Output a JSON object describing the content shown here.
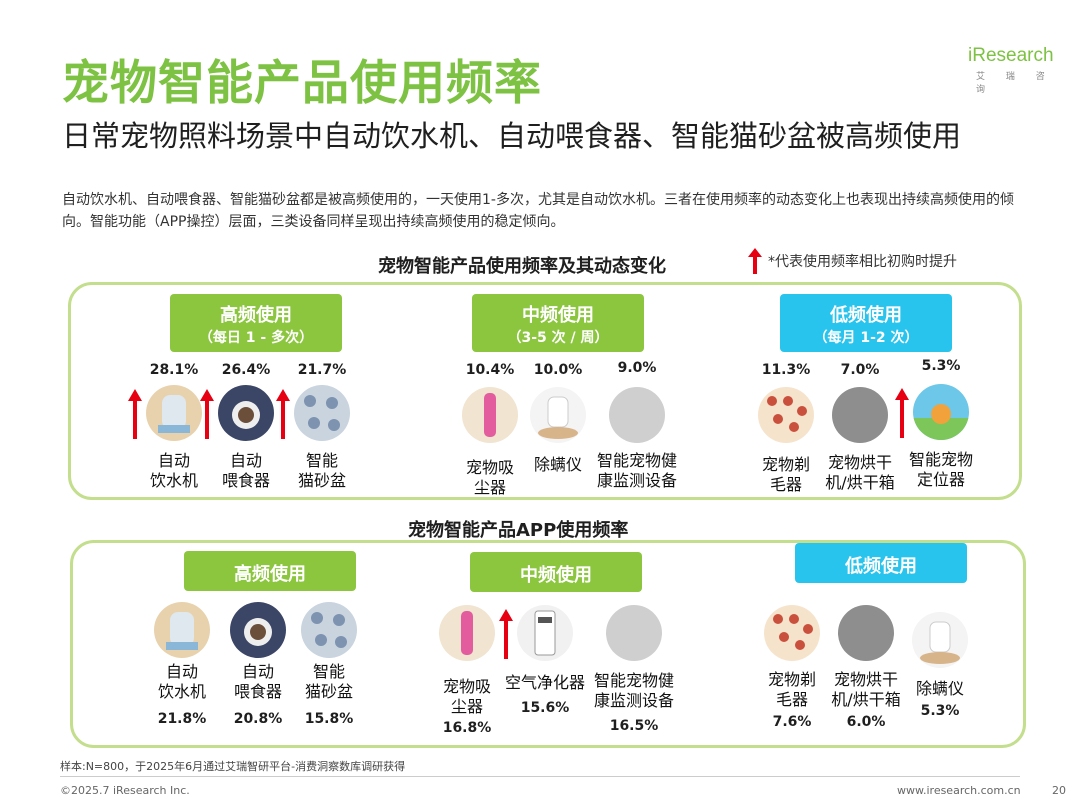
{
  "header": {
    "title": "宠物智能产品使用频率",
    "subtitle": "日常宠物照料场景中自动饮水机、自动喂食器、智能猫砂盆被高频使用",
    "logo_text": "iResearch",
    "logo_sub": "艾 瑞 咨 询"
  },
  "intro": "自动饮水机、自动喂食器、智能猫砂盆都是被高频使用的，一天使用1-多次，尤其是自动饮水机。三者在使用频率的动态变化上也表现出持续高频使用的倾向。智能功能（APP操控）层面，三类设备同样呈现出持续高频使用的稳定倾向。",
  "section1": {
    "title": "宠物智能产品使用频率及其动态变化",
    "note": "*代表使用频率相比初购时提升",
    "groups": [
      {
        "label": "高频使用",
        "sub": "（每日 1 - 多次）",
        "color": "#8cc63f"
      },
      {
        "label": "中频使用",
        "sub": "（3-5 次 / 周）",
        "color": "#8cc63f"
      },
      {
        "label": "低频使用",
        "sub": "（每月 1-2 次）",
        "color": "#29c4ee"
      }
    ],
    "items": [
      {
        "pct": "28.1%",
        "name": "自动\n饮水机",
        "icon": "water-fountain-icon",
        "up": true
      },
      {
        "pct": "26.4%",
        "name": "自动\n喂食器",
        "icon": "feeder-icon",
        "up": true
      },
      {
        "pct": "21.7%",
        "name": "智能\n猫砂盆",
        "icon": "litter-box-icon",
        "up": true
      },
      {
        "pct": "10.4%",
        "name": "宠物吸\n尘器",
        "icon": "vacuum-icon",
        "up": false
      },
      {
        "pct": "10.0%",
        "name": "除螨仪",
        "icon": "mite-remover-icon",
        "up": false
      },
      {
        "pct": "9.0%",
        "name": "智能宠物健\n康监测设备",
        "icon": "health-monitor-icon",
        "up": false
      },
      {
        "pct": "11.3%",
        "name": "宠物剃\n毛器",
        "icon": "shaver-icon",
        "up": false
      },
      {
        "pct": "7.0%",
        "name": "宠物烘干\n机/烘干箱",
        "icon": "dryer-icon",
        "up": false
      },
      {
        "pct": "5.3%",
        "name": "智能宠物\n定位器",
        "icon": "locator-icon",
        "up": true
      }
    ]
  },
  "section2": {
    "title": "宠物智能产品APP使用频率",
    "groups": [
      {
        "label": "高频使用",
        "color": "#8cc63f"
      },
      {
        "label": "中频使用",
        "color": "#8cc63f"
      },
      {
        "label": "低频使用",
        "color": "#29c4ee"
      }
    ],
    "items": [
      {
        "pct": "21.8%",
        "name": "自动\n饮水机",
        "icon": "water-fountain-icon",
        "up": false
      },
      {
        "pct": "20.8%",
        "name": "自动\n喂食器",
        "icon": "feeder-icon",
        "up": false
      },
      {
        "pct": "15.8%",
        "name": "智能\n猫砂盆",
        "icon": "litter-box-icon",
        "up": false
      },
      {
        "pct": "16.8%",
        "name": "宠物吸\n尘器",
        "icon": "vacuum-icon",
        "up": false
      },
      {
        "pct": "15.6%",
        "name": "空气净化器",
        "icon": "air-purifier-icon",
        "up": true
      },
      {
        "pct": "16.5%",
        "name": "智能宠物健\n康监测设备",
        "icon": "health-monitor-icon",
        "up": false
      },
      {
        "pct": "7.6%",
        "name": "宠物剃\n毛器",
        "icon": "shaver-icon",
        "up": false
      },
      {
        "pct": "6.0%",
        "name": "宠物烘干\n机/烘干箱",
        "icon": "dryer-icon",
        "up": false
      },
      {
        "pct": "5.3%",
        "name": "除螨仪",
        "icon": "mite-remover-icon",
        "up": false
      }
    ]
  },
  "footer": {
    "sample": "样本:N=800，于2025年6月通过艾瑞智研平台-消费洞察数库调研获得",
    "copyright": "©2025.7 iResearch Inc.",
    "site": "www.iresearch.com.cn",
    "page": "20"
  }
}
